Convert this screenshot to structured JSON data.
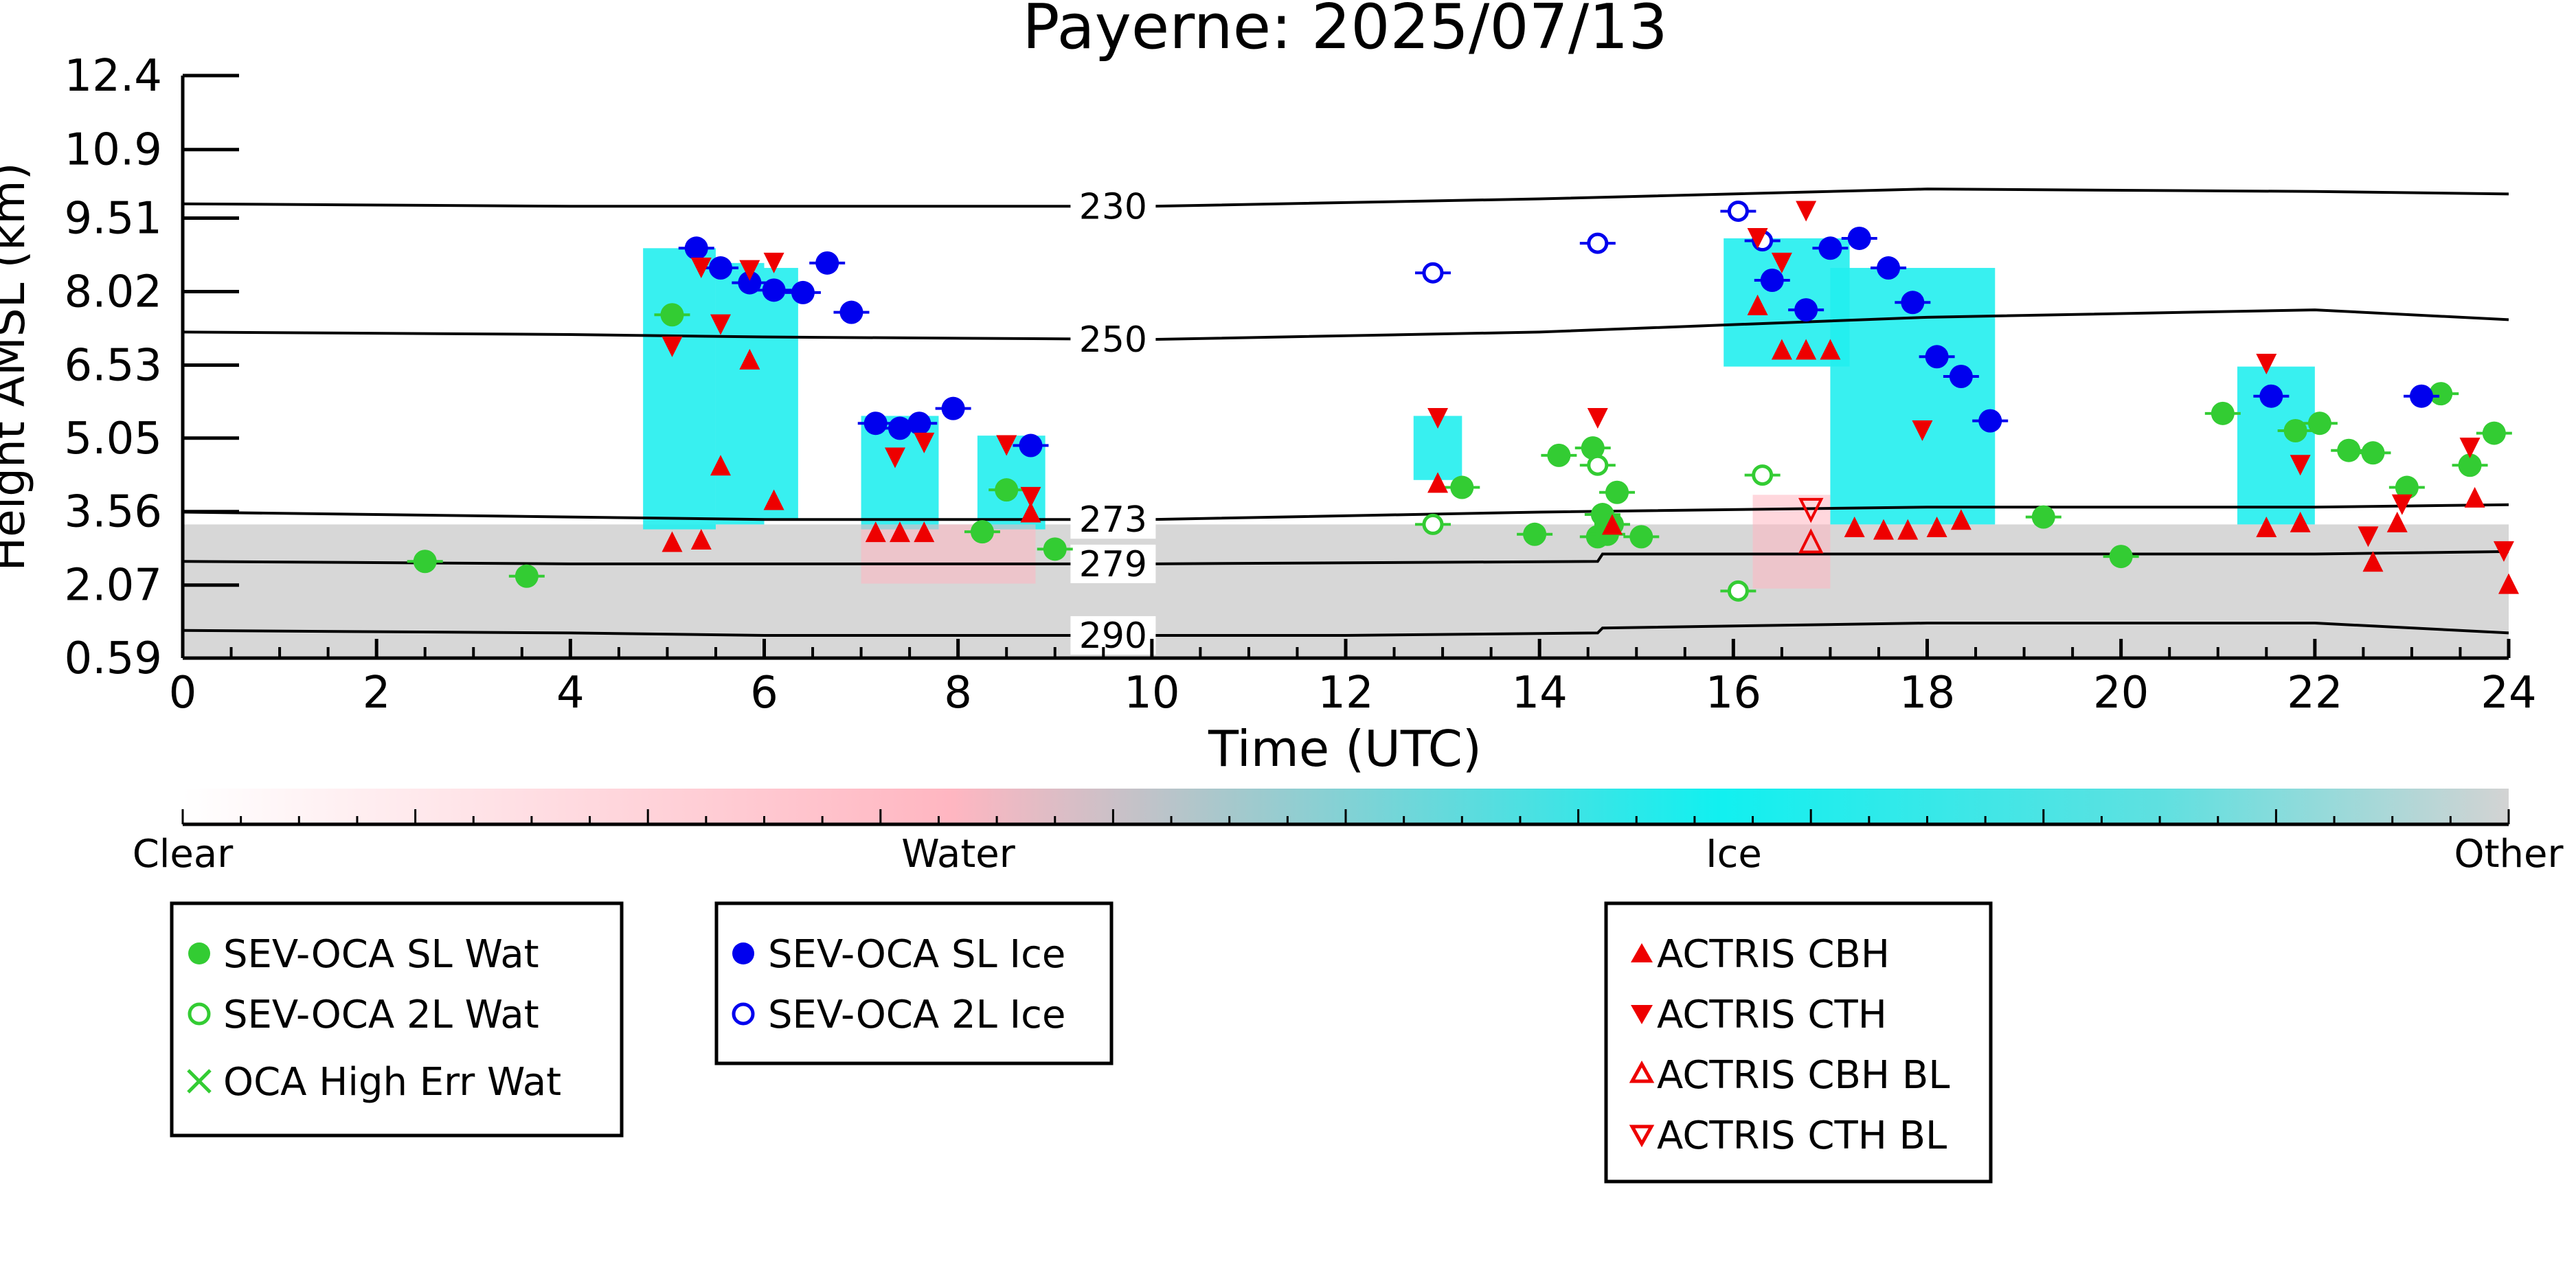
{
  "chart_data": {
    "type": "scatter",
    "title": "Payerne: 2025/07/13",
    "xlabel": "Time (UTC)",
    "ylabel": "Height AMSL (km)",
    "xlim": [
      0,
      24
    ],
    "ylim": [
      0.59,
      12.4
    ],
    "xticks": [
      "0",
      "2",
      "4",
      "6",
      "8",
      "10",
      "12",
      "14",
      "16",
      "18",
      "20",
      "22",
      "24"
    ],
    "yticks": [
      "0.59",
      "2.07",
      "3.56",
      "5.05",
      "6.53",
      "8.02",
      "9.51",
      "10.9",
      "12.4"
    ],
    "colors": {
      "water": "#33cc33",
      "ice": "#0000ee",
      "actris": "#ee0000",
      "cloud_ice": "#22eeee",
      "cloud_water": "#ffb6c1",
      "cloud_other": "#d3d3d3"
    },
    "isotherms": [
      {
        "label": "230",
        "x": [
          0,
          4,
          6,
          10,
          14,
          18,
          22,
          24
        ],
        "y": [
          9.8,
          9.75,
          9.75,
          9.75,
          9.9,
          10.1,
          10.05,
          10.0
        ]
      },
      {
        "label": "250",
        "x": [
          0,
          4,
          6,
          10,
          14,
          18,
          22,
          24
        ],
        "y": [
          7.2,
          7.15,
          7.1,
          7.05,
          7.2,
          7.5,
          7.65,
          7.45
        ]
      },
      {
        "label": "273",
        "x": [
          0,
          4,
          6,
          10,
          14,
          18,
          22,
          24
        ],
        "y": [
          3.55,
          3.45,
          3.4,
          3.4,
          3.55,
          3.65,
          3.65,
          3.7
        ]
      },
      {
        "label": "279",
        "x": [
          0,
          4,
          6,
          10,
          14.6,
          14.65,
          18,
          22,
          24
        ],
        "y": [
          2.55,
          2.5,
          2.5,
          2.5,
          2.55,
          2.7,
          2.7,
          2.7,
          2.75
        ]
      },
      {
        "label": "290",
        "x": [
          0,
          4,
          6,
          9.5,
          12,
          14.6,
          14.65,
          18,
          22,
          24
        ],
        "y": [
          1.15,
          1.1,
          1.05,
          1.05,
          1.05,
          1.1,
          1.2,
          1.3,
          1.3,
          1.1
        ]
      }
    ],
    "cloud_regions": [
      {
        "phase": "other",
        "x0": 0,
        "x1": 24,
        "y0": 0.59,
        "y1": 3.3
      },
      {
        "phase": "ice",
        "x0": 4.75,
        "x1": 5.5,
        "y0": 3.2,
        "y1": 8.9
      },
      {
        "phase": "ice",
        "x0": 5.5,
        "x1": 6.0,
        "y0": 3.3,
        "y1": 8.6
      },
      {
        "phase": "ice",
        "x0": 6.0,
        "x1": 6.35,
        "y0": 3.4,
        "y1": 8.5
      },
      {
        "phase": "ice",
        "x0": 7.0,
        "x1": 7.8,
        "y0": 3.2,
        "y1": 5.5
      },
      {
        "phase": "ice",
        "x0": 8.2,
        "x1": 8.9,
        "y0": 3.2,
        "y1": 5.1
      },
      {
        "phase": "ice",
        "x0": 12.7,
        "x1": 13.2,
        "y0": 4.2,
        "y1": 5.5
      },
      {
        "phase": "ice",
        "x0": 15.9,
        "x1": 17.2,
        "y0": 6.5,
        "y1": 9.1
      },
      {
        "phase": "ice",
        "x0": 17.0,
        "x1": 18.7,
        "y0": 3.3,
        "y1": 8.5
      },
      {
        "phase": "ice",
        "x0": 21.2,
        "x1": 22.0,
        "y0": 3.3,
        "y1": 6.5
      },
      {
        "phase": "water",
        "x0": 7.0,
        "x1": 8.8,
        "y0": 2.1,
        "y1": 3.3
      },
      {
        "phase": "water",
        "x0": 16.2,
        "x1": 17.0,
        "y0": 2.0,
        "y1": 3.9
      }
    ],
    "legend_groups": [
      {
        "entries": [
          {
            "label": "SEV-OCA SL Wat",
            "marker": "filled-circle",
            "color": "#33cc33"
          },
          {
            "label": "SEV-OCA 2L Wat",
            "marker": "open-circle",
            "color": "#33cc33"
          },
          {
            "label": "OCA High Err Wat",
            "marker": "x",
            "color": "#33cc33"
          }
        ]
      },
      {
        "entries": [
          {
            "label": "SEV-OCA SL Ice",
            "marker": "filled-circle",
            "color": "#0000ee"
          },
          {
            "label": "SEV-OCA 2L Ice",
            "marker": "open-circle",
            "color": "#0000ee"
          }
        ]
      },
      {
        "entries": [
          {
            "label": "ACTRIS CBH",
            "marker": "triangle-up",
            "color": "#ee0000"
          },
          {
            "label": "ACTRIS CTH",
            "marker": "triangle-down",
            "color": "#ee0000"
          },
          {
            "label": "ACTRIS CBH BL",
            "marker": "triangle-up-open",
            "color": "#ee0000"
          },
          {
            "label": "ACTRIS CTH BL",
            "marker": "triangle-down-open",
            "color": "#ee0000"
          }
        ]
      }
    ],
    "colorbar": {
      "labels": [
        "Clear",
        "Water",
        "Ice",
        "Other"
      ]
    },
    "series": [
      {
        "name": "SEV-OCA SL Wat",
        "marker": "filled-circle",
        "color": "#33cc33",
        "points": [
          [
            2.5,
            2.55
          ],
          [
            3.55,
            2.25
          ],
          [
            5.05,
            7.55
          ],
          [
            8.5,
            4.0
          ],
          [
            8.25,
            3.15
          ],
          [
            9.0,
            2.8
          ],
          [
            13.2,
            4.05
          ],
          [
            14.2,
            4.7
          ],
          [
            14.55,
            4.85
          ],
          [
            14.6,
            3.05
          ],
          [
            14.65,
            3.5
          ],
          [
            14.7,
            3.1
          ],
          [
            14.75,
            3.3
          ],
          [
            14.8,
            3.95
          ],
          [
            15.05,
            3.05
          ],
          [
            13.95,
            3.1
          ],
          [
            19.2,
            3.45
          ],
          [
            20.0,
            2.65
          ],
          [
            21.05,
            5.55
          ],
          [
            21.8,
            5.2
          ],
          [
            22.05,
            5.35
          ],
          [
            22.35,
            4.8
          ],
          [
            22.6,
            4.75
          ],
          [
            22.95,
            4.05
          ],
          [
            23.3,
            5.95
          ],
          [
            23.6,
            4.5
          ],
          [
            23.85,
            5.15
          ]
        ]
      },
      {
        "name": "SEV-OCA 2L Wat",
        "marker": "open-circle",
        "color": "#33cc33",
        "points": [
          [
            12.9,
            3.3
          ],
          [
            14.6,
            4.5
          ],
          [
            16.05,
            1.95
          ],
          [
            16.3,
            4.3
          ]
        ]
      },
      {
        "name": "OCA High Err Wat",
        "marker": "x",
        "color": "#33cc33",
        "points": []
      },
      {
        "name": "SEV-OCA SL Ice",
        "marker": "filled-circle",
        "color": "#0000ee",
        "points": [
          [
            5.3,
            8.9
          ],
          [
            5.55,
            8.5
          ],
          [
            5.85,
            8.2
          ],
          [
            6.1,
            8.05
          ],
          [
            6.4,
            8.0
          ],
          [
            6.65,
            8.6
          ],
          [
            6.9,
            7.6
          ],
          [
            7.15,
            5.35
          ],
          [
            7.4,
            5.25
          ],
          [
            7.6,
            5.35
          ],
          [
            7.95,
            5.65
          ],
          [
            8.75,
            4.9
          ],
          [
            16.4,
            8.25
          ],
          [
            16.75,
            7.65
          ],
          [
            17.0,
            8.9
          ],
          [
            17.3,
            9.1
          ],
          [
            17.6,
            8.5
          ],
          [
            17.85,
            7.8
          ],
          [
            18.1,
            6.7
          ],
          [
            18.35,
            6.3
          ],
          [
            18.65,
            5.4
          ],
          [
            21.55,
            5.9
          ],
          [
            23.1,
            5.9
          ]
        ]
      },
      {
        "name": "SEV-OCA 2L Ice",
        "marker": "open-circle",
        "color": "#0000ee",
        "points": [
          [
            12.9,
            8.4
          ],
          [
            14.6,
            9.0
          ],
          [
            16.05,
            9.65
          ],
          [
            16.3,
            9.05
          ]
        ]
      },
      {
        "name": "ACTRIS CBH",
        "marker": "triangle-up",
        "color": "#ee0000",
        "points": [
          [
            5.05,
            2.95
          ],
          [
            5.35,
            3.0
          ],
          [
            5.55,
            4.5
          ],
          [
            5.85,
            6.65
          ],
          [
            6.1,
            3.8
          ],
          [
            7.15,
            3.15
          ],
          [
            7.4,
            3.15
          ],
          [
            7.65,
            3.15
          ],
          [
            8.75,
            3.55
          ],
          [
            12.95,
            4.15
          ],
          [
            14.75,
            3.3
          ],
          [
            16.25,
            7.75
          ],
          [
            16.5,
            6.85
          ],
          [
            16.75,
            6.85
          ],
          [
            17.0,
            6.85
          ],
          [
            17.25,
            3.25
          ],
          [
            17.55,
            3.2
          ],
          [
            17.8,
            3.2
          ],
          [
            18.1,
            3.25
          ],
          [
            18.35,
            3.4
          ],
          [
            21.5,
            3.25
          ],
          [
            21.85,
            3.35
          ],
          [
            22.6,
            2.55
          ],
          [
            22.85,
            3.35
          ],
          [
            23.65,
            3.85
          ],
          [
            24.0,
            2.1
          ]
        ]
      },
      {
        "name": "ACTRIS CTH",
        "marker": "triangle-down",
        "color": "#ee0000",
        "points": [
          [
            5.05,
            6.9
          ],
          [
            5.35,
            8.5
          ],
          [
            5.55,
            7.35
          ],
          [
            5.85,
            8.45
          ],
          [
            6.1,
            8.6
          ],
          [
            7.35,
            4.65
          ],
          [
            7.65,
            4.95
          ],
          [
            8.5,
            4.9
          ],
          [
            8.75,
            3.85
          ],
          [
            12.95,
            5.45
          ],
          [
            14.6,
            5.45
          ],
          [
            16.25,
            9.1
          ],
          [
            16.5,
            8.6
          ],
          [
            16.75,
            9.65
          ],
          [
            17.95,
            5.2
          ],
          [
            21.5,
            6.55
          ],
          [
            21.85,
            4.5
          ],
          [
            22.55,
            3.05
          ],
          [
            22.9,
            3.7
          ],
          [
            23.6,
            4.85
          ],
          [
            23.95,
            2.75
          ]
        ]
      },
      {
        "name": "ACTRIS CBH BL",
        "marker": "triangle-up-open",
        "color": "#ee0000",
        "points": [
          [
            16.8,
            2.95
          ]
        ]
      },
      {
        "name": "ACTRIS CTH BL",
        "marker": "triangle-down-open",
        "color": "#ee0000",
        "points": [
          [
            16.8,
            3.6
          ]
        ]
      }
    ]
  }
}
